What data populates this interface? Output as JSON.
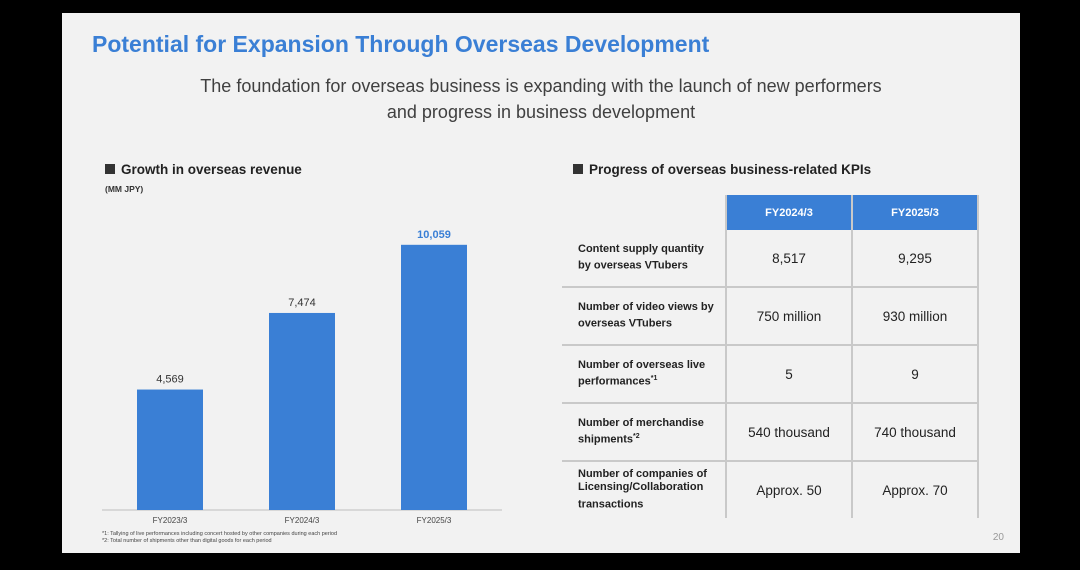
{
  "title": "Potential for Expansion Through Overseas Development",
  "subtitle": {
    "line1": "The foundation for overseas business is expanding with the launch of new performers",
    "line2": "and progress in business development"
  },
  "left_section": {
    "heading": "Growth in overseas revenue",
    "unit": "(MM JPY)"
  },
  "chart_data": {
    "type": "bar",
    "title": "Growth in overseas revenue",
    "ylabel": "(MM JPY)",
    "categories": [
      "FY2023/3",
      "FY2024/3",
      "FY2025/3"
    ],
    "values": [
      4569,
      7474,
      10059
    ],
    "value_labels": [
      "4,569",
      "7,474",
      "10,059"
    ],
    "ylim": [
      0,
      11000
    ],
    "bar_color": "#3a7fd5",
    "highlight_label_color": "#3a7fd5",
    "grid": false
  },
  "right_section": {
    "heading": "Progress of overseas business-related KPIs"
  },
  "kpi_table": {
    "columns": [
      "FY2024/3",
      "FY2025/3"
    ],
    "rows": [
      {
        "label": "Content supply quantity by overseas VTubers",
        "sup": "",
        "values": [
          "8,517",
          "9,295"
        ]
      },
      {
        "label": "Number of video views by overseas VTubers",
        "sup": "",
        "values": [
          "750 million",
          "930 million"
        ]
      },
      {
        "label": "Number of overseas live performances",
        "sup": "*1",
        "values": [
          "5",
          "9"
        ]
      },
      {
        "label": "Number of merchandise shipments",
        "sup": "*2",
        "values": [
          "540 thousand",
          "740 thousand"
        ]
      },
      {
        "label": "Number of companies of Licensing/Collaboration transactions",
        "sup": "",
        "values": [
          "Approx. 50",
          "Approx. 70"
        ]
      }
    ]
  },
  "footnotes": [
    "*1: Tallying of live performances including concert hosted by other companies during each period",
    "*2: Total number of shipments other than digital goods for each period"
  ],
  "page_number": "20",
  "colors": {
    "accent": "#3a7fd5",
    "background": "#f2f2f2",
    "frame": "#000000"
  }
}
